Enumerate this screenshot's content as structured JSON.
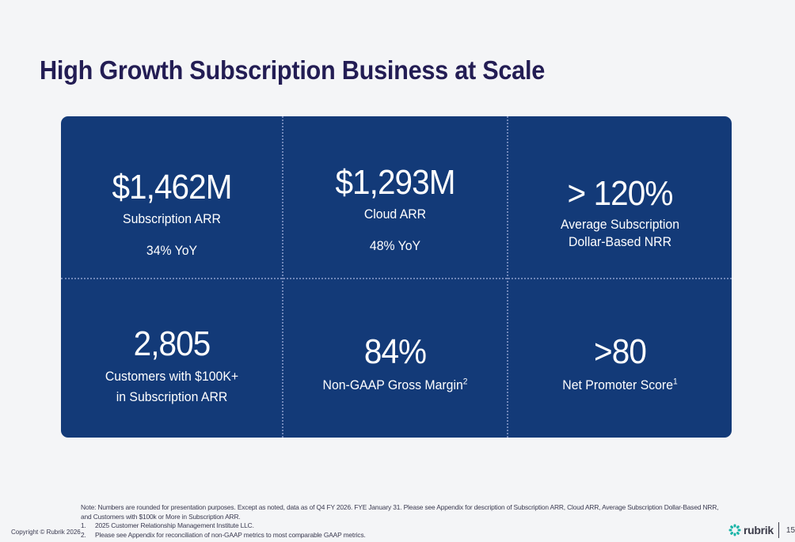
{
  "slide": {
    "title": "High Growth Subscription Business at Scale",
    "page_number": "15",
    "copyright": "Copyright © Rubrik 2026"
  },
  "metrics": [
    {
      "value": "$1,462M",
      "label": "Subscription ARR",
      "sub": "34% YoY"
    },
    {
      "value": "$1,293M",
      "label": "Cloud ARR",
      "sub": "48% YoY"
    },
    {
      "value": "> 120%",
      "label_line1": "Average Subscription",
      "label_line2": "Dollar-Based NRR"
    },
    {
      "value": "2,805",
      "label_line1": "Customers with $100K+",
      "label_line2": "in Subscription ARR"
    },
    {
      "value": "84%",
      "label": "Non-GAAP Gross Margin",
      "footnote": "2"
    },
    {
      "value": ">80",
      "label": "Net Promoter Score",
      "footnote": "1"
    }
  ],
  "notes": {
    "intro": "Note: Numbers are rounded for presentation purposes. Except as noted, data as of Q4 FY 2026. FYE January 31. Please see Appendix for description of Subscription ARR, Cloud ARR, Average Subscription Dollar-Based NRR, and Customers with $100k or More in Subscription ARR.",
    "items": [
      {
        "num": "1.",
        "text": "2025 Customer Relationship Management Institute LLC."
      },
      {
        "num": "2.",
        "text": "Please see Appendix for reconciliation of non-GAAP metrics to most comparable GAAP metrics."
      }
    ]
  },
  "brand": {
    "name": "rubrik",
    "icon": "rubrik-logo-icon",
    "color": "#1ab5a8"
  },
  "colors": {
    "panel": "#133a78",
    "title": "#231d54",
    "background": "#f4f5f7"
  }
}
